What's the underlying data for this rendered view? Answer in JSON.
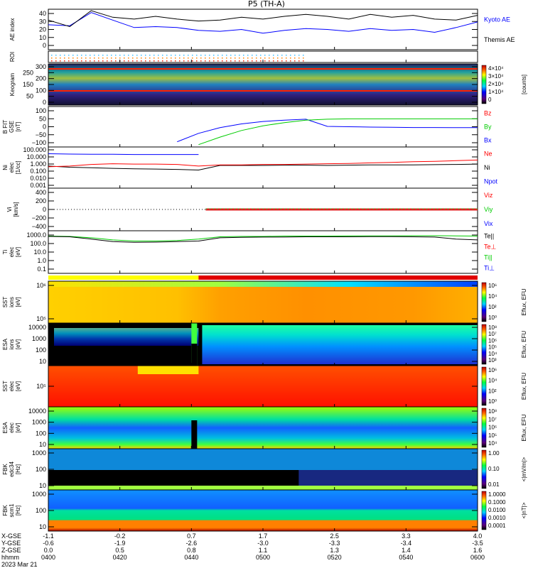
{
  "title": "P5 (TH-A)",
  "time_range_min": [
    0,
    120
  ],
  "panels": [
    {
      "id": "ae",
      "ylabel": [
        "AE index"
      ],
      "ticks": [
        "40",
        "30",
        "20",
        "10",
        "0"
      ],
      "legend": [
        {
          "text": "Kyoto AE",
          "color": "#0000ff"
        },
        {
          "text": "Themis AE",
          "color": "#000000"
        }
      ]
    },
    {
      "id": "roi",
      "ylabel": [
        "ROI"
      ],
      "ticks": [],
      "legend": []
    },
    {
      "id": "keogram",
      "ylabel": [
        "Keogram"
      ],
      "ticks": [
        "300",
        "250",
        "200",
        "150",
        "100",
        "50",
        "0"
      ],
      "legend": [],
      "colorbar": {
        "labels": [
          "4×10⁴",
          "3×10⁴",
          "2×10⁴",
          "1×10⁴",
          "0"
        ],
        "title": "[counts]"
      }
    },
    {
      "id": "bfit",
      "ylabel": [
        "B FIT",
        "GSE",
        "[nT]"
      ],
      "ticks": [
        "100",
        "50",
        "0",
        "−50",
        "−100"
      ],
      "legend": [
        {
          "text": "Bz",
          "color": "#ff0000"
        },
        {
          "text": "By",
          "color": "#00cc00"
        },
        {
          "text": "Bx",
          "color": "#0000ff"
        }
      ]
    },
    {
      "id": "ni",
      "ylabel": [
        "Ni",
        "elec",
        "[1/cc]"
      ],
      "ticks": [
        "100.000",
        "10.000",
        "1.000",
        "0.100",
        "0.010",
        "0.001"
      ],
      "legend": [
        {
          "text": "Ne",
          "color": "#ff0000"
        },
        {
          "text": "Ni",
          "color": "#000000"
        },
        {
          "text": "Npot",
          "color": "#0000ff"
        }
      ]
    },
    {
      "id": "vi",
      "ylabel": [
        "Vi",
        "[km/s]"
      ],
      "ticks": [
        "400",
        "200",
        "0",
        "−200",
        "−400"
      ],
      "legend": [
        {
          "text": "Viz",
          "color": "#ff0000"
        },
        {
          "text": "Viy",
          "color": "#00cc00"
        },
        {
          "text": "Vix",
          "color": "#0000ff"
        }
      ]
    },
    {
      "id": "ti",
      "ylabel": [
        "Ti",
        "elec",
        "[eV]"
      ],
      "ticks": [
        "1000.0",
        "100.0",
        "10.0",
        "1.0",
        "0.1"
      ],
      "legend": [
        {
          "text": "Te||",
          "color": "#000000"
        },
        {
          "text": "Te⊥",
          "color": "#ff0000"
        },
        {
          "text": "Ti||",
          "color": "#00cc00"
        },
        {
          "text": "Ti⊥",
          "color": "#0000ff"
        }
      ]
    },
    {
      "id": "sst_ions",
      "ylabel": [
        "SST",
        "ions",
        "[eV]"
      ],
      "ticks": [
        "10⁶",
        "10⁵"
      ],
      "colorbar": {
        "labels": [
          "10⁶",
          "10⁴",
          "10²",
          "10⁰"
        ],
        "title": "Eflux, EFU"
      }
    },
    {
      "id": "esa_ions",
      "ylabel": [
        "ESA",
        "ions",
        "[eV]"
      ],
      "ticks": [
        "10000",
        "1000",
        "100",
        "10"
      ],
      "colorbar": {
        "labels": [
          "10⁸",
          "10⁷",
          "10⁶",
          "10⁵",
          "10⁴",
          "10³"
        ],
        "title": "Eflux, EFU"
      }
    },
    {
      "id": "sst_elec",
      "ylabel": [
        "SST",
        "elec",
        "[eV]"
      ],
      "ticks": [
        "10⁵"
      ],
      "colorbar": {
        "labels": [
          "10⁶",
          "10⁴",
          "10²",
          "10⁰"
        ],
        "title": "Eflux, EFU"
      }
    },
    {
      "id": "esa_elec",
      "ylabel": [
        "ESA",
        "elec",
        "[eV]"
      ],
      "ticks": [
        "10000",
        "1000",
        "100",
        "10"
      ],
      "colorbar": {
        "labels": [
          "10⁸",
          "10⁷",
          "10⁶",
          "10⁵",
          "10⁴"
        ],
        "title": "Eflux, EFU"
      }
    },
    {
      "id": "fbk_edc",
      "ylabel": [
        "FBK",
        "edc34",
        "[Hz]"
      ],
      "ticks": [
        "1000",
        "100",
        "10"
      ],
      "colorbar": {
        "labels": [
          "1.00",
          "0.10",
          "0.01"
        ],
        "title": "<|mV/m|>"
      }
    },
    {
      "id": "fbk_scm",
      "ylabel": [
        "FBK",
        "scm1",
        "[Hz]"
      ],
      "ticks": [
        "1000",
        "100",
        "10"
      ],
      "colorbar": {
        "labels": [
          "1.0000",
          "0.1000",
          "0.0100",
          "0.0010",
          "0.0001"
        ],
        "title": "<|nT|>"
      }
    }
  ],
  "xaxis": {
    "row_labels": [
      "X-GSE",
      "Y-GSE",
      "Z-GSE",
      "hhmm",
      "2023 Mar 21"
    ],
    "columns": [
      {
        "x": "-1.1",
        "y": "-0.6",
        "z": "0.0",
        "t": "0400"
      },
      {
        "x": "-0.2",
        "y": "-1.9",
        "z": "0.5",
        "t": "0420"
      },
      {
        "x": "0.7",
        "y": "-2.6",
        "z": "0.8",
        "t": "0440"
      },
      {
        "x": "1.7",
        "y": "-3.0",
        "z": "1.1",
        "t": "0500"
      },
      {
        "x": "2.5",
        "y": "-3.3",
        "z": "1.3",
        "t": "0520"
      },
      {
        "x": "3.3",
        "y": "-3.4",
        "z": "1.4",
        "t": "0540"
      },
      {
        "x": "4.0",
        "y": "-3.5",
        "z": "1.6",
        "t": "0600"
      }
    ]
  },
  "chart_data": {
    "type": "line",
    "title": "P5 (TH-A)",
    "x_minutes": [
      0,
      6,
      12,
      18,
      24,
      30,
      36,
      42,
      48,
      54,
      60,
      66,
      72,
      78,
      84,
      90,
      96,
      102,
      108,
      114,
      120
    ],
    "series": [
      {
        "panel": "ae",
        "name": "Kyoto AE",
        "color": "#0000ff",
        "ylim": [
          0,
          40
        ],
        "values": [
          25,
          24,
          38,
          30,
          22,
          23,
          22,
          19,
          18,
          20,
          16,
          19,
          21,
          20,
          18,
          21,
          19,
          20,
          17,
          22,
          28
        ]
      },
      {
        "panel": "ae",
        "name": "Themis AE",
        "color": "#000000",
        "ylim": [
          0,
          40
        ],
        "values": [
          30,
          23,
          40,
          33,
          31,
          34,
          31,
          29,
          30,
          33,
          31,
          34,
          36,
          34,
          31,
          36,
          33,
          35,
          31,
          30,
          35
        ]
      },
      {
        "panel": "bfit",
        "name": "Bx",
        "color": "#0000ff",
        "ylim": [
          -100,
          100
        ],
        "values": [
          null,
          null,
          null,
          null,
          null,
          null,
          -80,
          -35,
          -5,
          15,
          28,
          35,
          40,
          2,
          0,
          -2,
          -3,
          -4,
          -4,
          -5,
          -5
        ]
      },
      {
        "panel": "bfit",
        "name": "By",
        "color": "#00cc00",
        "ylim": [
          -100,
          100
        ],
        "values": [
          null,
          null,
          null,
          null,
          null,
          null,
          null,
          -95,
          -55,
          -20,
          5,
          22,
          35,
          40,
          42,
          42,
          42,
          42,
          42,
          42,
          42
        ]
      },
      {
        "panel": "ni",
        "name": "Npot",
        "color": "#0000ff",
        "ylim_log": [
          0.001,
          100
        ],
        "values": [
          20,
          18,
          17,
          17,
          16,
          16,
          16,
          16,
          null,
          null,
          null,
          null,
          null,
          null,
          null,
          null,
          null,
          null,
          null,
          null,
          80
        ]
      },
      {
        "panel": "ni",
        "name": "Ni",
        "color": "#000000",
        "ylim_log": [
          0.001,
          100
        ],
        "values": [
          0.5,
          0.35,
          0.3,
          0.25,
          0.22,
          0.2,
          0.18,
          0.15,
          0.6,
          0.6,
          0.6,
          0.65,
          0.65,
          0.6,
          0.65,
          0.7,
          0.7,
          0.7,
          0.75,
          0.8,
          0.9
        ]
      },
      {
        "panel": "ni",
        "name": "Ne",
        "color": "#ff0000",
        "ylim_log": [
          0.001,
          100
        ],
        "values": [
          0.4,
          0.5,
          0.8,
          1.0,
          0.9,
          0.9,
          0.8,
          0.5,
          0.7,
          0.7,
          0.8,
          0.8,
          0.9,
          1.0,
          1.1,
          1.3,
          1.5,
          1.8,
          2.0,
          2.5,
          3.0
        ]
      },
      {
        "panel": "ti",
        "name": "Ti||",
        "color": "#00cc00",
        "ylim_log": [
          0.1,
          3000
        ],
        "values": [
          1100,
          1000,
          700,
          400,
          300,
          300,
          350,
          500,
          900,
          1000,
          1000,
          1100,
          1100,
          1100,
          1150,
          1150,
          1150,
          1200,
          1200,
          1150,
          1100
        ]
      },
      {
        "panel": "ti",
        "name": "Te||",
        "color": "#000000",
        "ylim_log": [
          0.1,
          3000
        ],
        "values": [
          1000,
          900,
          500,
          260,
          220,
          230,
          260,
          300,
          700,
          800,
          850,
          850,
          900,
          900,
          900,
          950,
          950,
          900,
          850,
          500,
          400
        ]
      }
    ]
  }
}
